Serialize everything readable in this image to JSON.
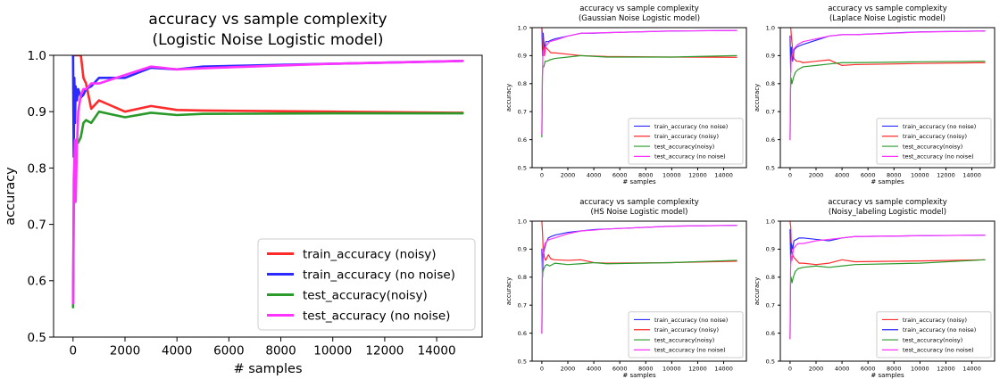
{
  "chart_data": [
    {
      "type": "line",
      "title": "accuracy vs sample complexity",
      "subtitle": "(Logistic Noise Logistic model)",
      "xlabel": "# samples",
      "ylabel": "accuracy",
      "xlim": [
        -750,
        15750
      ],
      "ylim": [
        0.5,
        1.0
      ],
      "xticks": [
        0,
        2000,
        4000,
        6000,
        8000,
        10000,
        12000,
        14000
      ],
      "yticks": [
        0.5,
        0.6,
        0.7,
        0.8,
        0.9,
        1.0
      ],
      "legend_position": "bottom-right",
      "series": [
        {
          "name": "train_accuracy (noisy)",
          "color": "#ff2b2b",
          "x": [
            0,
            50,
            100,
            150,
            200,
            300,
            400,
            500,
            700,
            1000,
            2000,
            3000,
            4000,
            5000,
            10000,
            15000
          ],
          "y": [
            1.0,
            1.0,
            1.0,
            1.0,
            1.0,
            1.0,
            0.96,
            0.95,
            0.905,
            0.92,
            0.9,
            0.91,
            0.903,
            0.902,
            0.9,
            0.898
          ]
        },
        {
          "name": "train_accuracy (no noise)",
          "color": "#2b2bff",
          "x": [
            0,
            25,
            50,
            75,
            100,
            150,
            200,
            300,
            400,
            500,
            700,
            1000,
            2000,
            3000,
            4000,
            5000,
            10000,
            15000
          ],
          "y": [
            1.0,
            0.82,
            0.96,
            0.88,
            0.945,
            0.92,
            0.94,
            0.925,
            0.93,
            0.94,
            0.945,
            0.96,
            0.96,
            0.978,
            0.975,
            0.98,
            0.985,
            0.99
          ]
        },
        {
          "name": "test_accuracy(noisy)",
          "color": "#2a9a2a",
          "x": [
            0,
            30,
            60,
            100,
            150,
            200,
            300,
            400,
            500,
            700,
            1000,
            2000,
            3000,
            4000,
            5000,
            10000,
            15000
          ],
          "y": [
            0.553,
            0.78,
            0.82,
            0.83,
            0.85,
            0.845,
            0.855,
            0.88,
            0.885,
            0.88,
            0.9,
            0.89,
            0.898,
            0.894,
            0.896,
            0.897,
            0.897
          ]
        },
        {
          "name": "test_accuracy (no noise)",
          "color": "#ff33ff",
          "x": [
            0,
            25,
            50,
            75,
            100,
            150,
            200,
            300,
            400,
            500,
            700,
            1000,
            2000,
            3000,
            4000,
            5000,
            10000,
            15000
          ],
          "y": [
            0.56,
            0.72,
            0.8,
            0.85,
            0.74,
            0.84,
            0.9,
            0.93,
            0.94,
            0.94,
            0.95,
            0.95,
            0.965,
            0.98,
            0.975,
            0.977,
            0.985,
            0.99
          ]
        }
      ]
    },
    {
      "type": "line",
      "title": "accuracy vs sample complexity",
      "subtitle": "(Gaussian Noise Logistic model)",
      "xlabel": "# samples",
      "ylabel": "accuracy",
      "xlim": [
        -750,
        15750
      ],
      "ylim": [
        0.5,
        1.0
      ],
      "xticks": [
        0,
        2000,
        4000,
        6000,
        8000,
        10000,
        12000,
        14000
      ],
      "yticks": [
        0.5,
        0.6,
        0.7,
        0.8,
        0.9,
        1.0
      ],
      "legend_position": "bottom-right",
      "series": [
        {
          "name": "train_accuracy (no noise)",
          "color": "#2b2bff",
          "x": [
            0,
            50,
            100,
            200,
            300,
            500,
            700,
            1000,
            2000,
            3000,
            4000,
            5000,
            10000,
            15000
          ],
          "y": [
            1.0,
            0.9,
            0.98,
            0.92,
            0.95,
            0.95,
            0.955,
            0.96,
            0.97,
            0.98,
            0.98,
            0.982,
            0.988,
            0.99
          ]
        },
        {
          "name": "train_accuracy (noisy)",
          "color": "#ff2b2b",
          "x": [
            0,
            50,
            100,
            200,
            300,
            500,
            700,
            1000,
            2000,
            3000,
            5000,
            10000,
            15000
          ],
          "y": [
            1.0,
            0.97,
            0.93,
            0.9,
            0.93,
            0.92,
            0.91,
            0.91,
            0.905,
            0.9,
            0.897,
            0.895,
            0.894
          ]
        },
        {
          "name": "test_accuracy(noisy)",
          "color": "#2a9a2a",
          "x": [
            0,
            40,
            80,
            150,
            250,
            400,
            600,
            1000,
            2000,
            3000,
            5000,
            10000,
            15000
          ],
          "y": [
            0.61,
            0.83,
            0.86,
            0.86,
            0.88,
            0.88,
            0.885,
            0.89,
            0.895,
            0.9,
            0.895,
            0.895,
            0.9
          ]
        },
        {
          "name": "test_accuracy (no noise)",
          "color": "#ff33ff",
          "x": [
            0,
            40,
            80,
            150,
            250,
            400,
            600,
            1000,
            2000,
            3000,
            5000,
            10000,
            15000
          ],
          "y": [
            0.62,
            0.8,
            0.92,
            0.9,
            0.93,
            0.94,
            0.95,
            0.955,
            0.97,
            0.98,
            0.982,
            0.988,
            0.99
          ]
        }
      ]
    },
    {
      "type": "line",
      "title": "accuracy vs sample complexity",
      "subtitle": "(Laplace Noise Logistic model)",
      "xlabel": "# samples",
      "ylabel": "accuracy",
      "xlim": [
        -750,
        15750
      ],
      "ylim": [
        0.5,
        1.0
      ],
      "xticks": [
        0,
        2000,
        4000,
        6000,
        8000,
        10000,
        12000,
        14000
      ],
      "yticks": [
        0.5,
        0.6,
        0.7,
        0.8,
        0.9,
        1.0
      ],
      "legend_position": "bottom-right",
      "series": [
        {
          "name": "train_accuracy (no noise)",
          "color": "#2b2bff",
          "x": [
            0,
            50,
            100,
            200,
            300,
            500,
            700,
            1000,
            2000,
            3000,
            4000,
            5000,
            10000,
            15000
          ],
          "y": [
            0.97,
            0.84,
            0.93,
            0.88,
            0.92,
            0.93,
            0.935,
            0.94,
            0.955,
            0.97,
            0.975,
            0.975,
            0.985,
            0.988
          ]
        },
        {
          "name": "train_accuracy (noisy)",
          "color": "#ff2b2b",
          "x": [
            0,
            50,
            100,
            200,
            300,
            500,
            700,
            1000,
            2000,
            3000,
            4000,
            5000,
            10000,
            15000
          ],
          "y": [
            1.0,
            1.0,
            0.97,
            0.92,
            0.89,
            0.88,
            0.88,
            0.875,
            0.88,
            0.885,
            0.865,
            0.868,
            0.872,
            0.875
          ]
        },
        {
          "name": "test_accuracy(noisy)",
          "color": "#2a9a2a",
          "x": [
            0,
            40,
            80,
            150,
            250,
            400,
            600,
            1000,
            2000,
            3000,
            4000,
            5000,
            10000,
            15000
          ],
          "y": [
            0.6,
            0.78,
            0.82,
            0.8,
            0.82,
            0.84,
            0.85,
            0.86,
            0.865,
            0.87,
            0.875,
            0.875,
            0.878,
            0.88
          ]
        },
        {
          "name": "test_accuracy (no noise)",
          "color": "#ff33ff",
          "x": [
            0,
            40,
            80,
            150,
            250,
            400,
            600,
            1000,
            2000,
            3000,
            4000,
            5000,
            10000,
            15000
          ],
          "y": [
            0.6,
            0.82,
            0.88,
            0.9,
            0.92,
            0.93,
            0.94,
            0.95,
            0.96,
            0.97,
            0.975,
            0.975,
            0.984,
            0.988
          ]
        }
      ]
    },
    {
      "type": "line",
      "title": "accuracy vs sample complexity",
      "subtitle": "(HS Noise Logistic model)",
      "xlabel": "# samples",
      "ylabel": "accuracy",
      "xlim": [
        -750,
        15750
      ],
      "ylim": [
        0.5,
        1.0
      ],
      "xticks": [
        0,
        2000,
        4000,
        6000,
        8000,
        10000,
        12000,
        14000
      ],
      "yticks": [
        0.5,
        0.6,
        0.7,
        0.8,
        0.9,
        1.0
      ],
      "legend_position": "bottom-right",
      "series": [
        {
          "name": "train_accuracy (no noise)",
          "color": "#2b2bff",
          "x": [
            0,
            50,
            100,
            200,
            300,
            500,
            700,
            1000,
            2000,
            3000,
            4000,
            5000,
            10000,
            15000
          ],
          "y": [
            0.9,
            0.8,
            0.88,
            0.9,
            0.92,
            0.94,
            0.945,
            0.95,
            0.96,
            0.965,
            0.97,
            0.972,
            0.982,
            0.985
          ]
        },
        {
          "name": "train_accuracy (noisy)",
          "color": "#ff2b2b",
          "x": [
            0,
            50,
            100,
            200,
            300,
            500,
            700,
            1000,
            2000,
            3000,
            4000,
            5000,
            10000,
            15000
          ],
          "y": [
            1.0,
            0.96,
            0.9,
            0.87,
            0.86,
            0.88,
            0.865,
            0.862,
            0.86,
            0.862,
            0.852,
            0.85,
            0.852,
            0.857
          ]
        },
        {
          "name": "test_accuracy(noisy)",
          "color": "#2a9a2a",
          "x": [
            0,
            40,
            80,
            150,
            250,
            400,
            600,
            1000,
            2000,
            3000,
            4000,
            5000,
            10000,
            15000
          ],
          "y": [
            0.6,
            0.8,
            0.82,
            0.83,
            0.84,
            0.845,
            0.84,
            0.85,
            0.845,
            0.848,
            0.852,
            0.848,
            0.852,
            0.86
          ]
        },
        {
          "name": "test_accuracy (no noise)",
          "color": "#ff33ff",
          "x": [
            0,
            40,
            80,
            150,
            250,
            400,
            600,
            1000,
            2000,
            3000,
            4000,
            5000,
            10000,
            15000
          ],
          "y": [
            0.6,
            0.84,
            0.88,
            0.9,
            0.92,
            0.93,
            0.935,
            0.94,
            0.955,
            0.965,
            0.968,
            0.972,
            0.982,
            0.985
          ]
        }
      ]
    },
    {
      "type": "line",
      "title": "accuracy vs sample complexity",
      "subtitle": "(Noisy_labeling Logistic model)",
      "xlabel": "# samples",
      "ylabel": "accuracy",
      "xlim": [
        -750,
        15750
      ],
      "ylim": [
        0.5,
        1.0
      ],
      "xticks": [
        0,
        2000,
        4000,
        6000,
        8000,
        10000,
        12000,
        14000
      ],
      "yticks": [
        0.5,
        0.6,
        0.7,
        0.8,
        0.9,
        1.0
      ],
      "legend_position": "bottom-right",
      "series": [
        {
          "name": "train_accuracy (noisy)",
          "color": "#ff2b2b",
          "x": [
            0,
            50,
            100,
            200,
            300,
            500,
            700,
            1000,
            2000,
            3000,
            4000,
            5000,
            10000,
            15000
          ],
          "y": [
            1.0,
            0.98,
            0.9,
            0.88,
            0.87,
            0.86,
            0.85,
            0.85,
            0.845,
            0.85,
            0.862,
            0.855,
            0.858,
            0.862
          ]
        },
        {
          "name": "train_accuracy (no noise)",
          "color": "#2b2bff",
          "x": [
            0,
            50,
            100,
            200,
            300,
            500,
            700,
            1000,
            2000,
            3000,
            4000,
            5000,
            10000,
            15000
          ],
          "y": [
            0.97,
            0.85,
            0.92,
            0.9,
            0.93,
            0.935,
            0.94,
            0.94,
            0.935,
            0.93,
            0.94,
            0.945,
            0.948,
            0.95
          ]
        },
        {
          "name": "test_accuracy(noisy)",
          "color": "#2a9a2a",
          "x": [
            0,
            40,
            80,
            150,
            250,
            400,
            600,
            1000,
            2000,
            3000,
            4000,
            5000,
            10000,
            15000
          ],
          "y": [
            0.58,
            0.78,
            0.8,
            0.78,
            0.8,
            0.82,
            0.83,
            0.835,
            0.84,
            0.835,
            0.84,
            0.845,
            0.85,
            0.862
          ]
        },
        {
          "name": "test_accuracy (no noise)",
          "color": "#ff33ff",
          "x": [
            0,
            40,
            80,
            150,
            250,
            400,
            600,
            1000,
            2000,
            3000,
            4000,
            5000,
            10000,
            15000
          ],
          "y": [
            0.58,
            0.83,
            0.88,
            0.86,
            0.9,
            0.91,
            0.92,
            0.92,
            0.93,
            0.935,
            0.94,
            0.945,
            0.948,
            0.95
          ]
        }
      ]
    }
  ]
}
